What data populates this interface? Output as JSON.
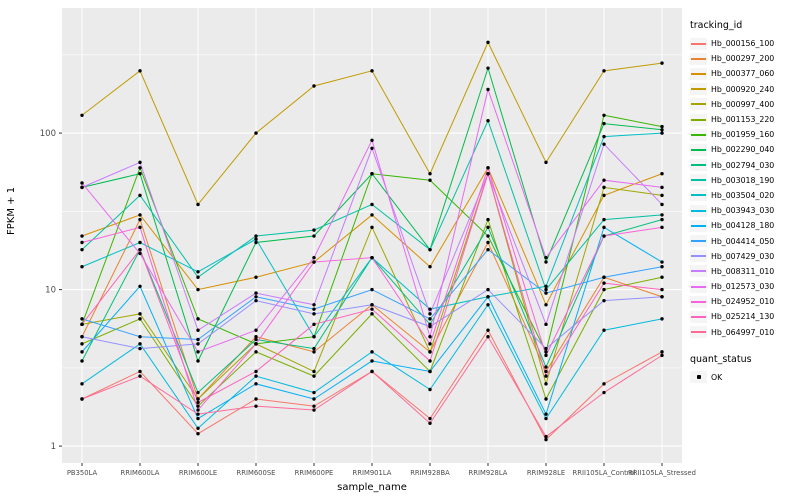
{
  "chart_data": {
    "type": "line",
    "title": "",
    "xlabel": "sample_name",
    "ylabel": "FPKM + 1",
    "legend_title": "tracking_id",
    "quant_legend": {
      "title": "quant_status",
      "items": [
        {
          "label": "OK",
          "color": "#000000"
        }
      ]
    },
    "grid": true,
    "panel_color": "#EBEBEB",
    "gridline_color": "#FFFFFF",
    "point_color": "#000000",
    "y_scale": "log10",
    "y_ticks": [
      1,
      10,
      100
    ],
    "y_minor_ticks": [
      3.162,
      31.62,
      316.2
    ],
    "ylim": [
      0.78,
      630
    ],
    "x_categories": [
      "PB350LA",
      "RRIM600LA",
      "RRIM600LE",
      "RRIM600SE",
      "RRIM600PE",
      "RRIM901LA",
      "RRIM928BA",
      "RRIM928LA",
      "RRIM928LE",
      "RRII105LA_Control",
      "RRII105LA_Stressed"
    ],
    "series": [
      {
        "name": "Hb_000156_100",
        "color": "#F8766D",
        "values": [
          2,
          3,
          1.2,
          2,
          1.8,
          3,
          1.5,
          5.5,
          1.1,
          2.5,
          4
        ]
      },
      {
        "name": "Hb_000297_200",
        "color": "#EA8331",
        "values": [
          5,
          28,
          2,
          5,
          4,
          8,
          4,
          20,
          3,
          12,
          9
        ]
      },
      {
        "name": "Hb_000377_060",
        "color": "#D89000",
        "values": [
          22,
          30,
          10,
          12,
          15,
          30,
          14,
          60,
          8,
          40,
          55
        ]
      },
      {
        "name": "Hb_000920_240",
        "color": "#C09B00",
        "values": [
          130,
          250,
          35,
          100,
          200,
          250,
          55,
          380,
          65,
          250,
          280
        ]
      },
      {
        "name": "Hb_000997_400",
        "color": "#A3A500",
        "values": [
          6,
          7,
          2,
          4.5,
          3,
          25,
          4,
          55,
          2.5,
          45,
          40
        ]
      },
      {
        "name": "Hb_001153_220",
        "color": "#7CAE00",
        "values": [
          4.5,
          6.5,
          1.8,
          4,
          2.8,
          7,
          3,
          28,
          2,
          10,
          12
        ]
      },
      {
        "name": "Hb_001959_160",
        "color": "#39B600",
        "values": [
          6,
          60,
          6.5,
          4.5,
          5,
          55,
          50,
          22,
          4,
          130,
          110
        ]
      },
      {
        "name": "Hb_002290_040",
        "color": "#00BB4E",
        "values": [
          45,
          55,
          3.5,
          20,
          22,
          55,
          18,
          260,
          15,
          115,
          105
        ]
      },
      {
        "name": "Hb_002794_030",
        "color": "#00BF7D",
        "values": [
          3.5,
          18,
          2.2,
          4.8,
          4.2,
          16,
          6,
          25,
          3.2,
          22,
          28
        ]
      },
      {
        "name": "Hb_003018_190",
        "color": "#00C1A3",
        "values": [
          18,
          40,
          12,
          22,
          24,
          35,
          18,
          120,
          10,
          28,
          30
        ]
      },
      {
        "name": "Hb_003504_020",
        "color": "#00BFC4",
        "values": [
          14,
          20,
          13,
          21,
          5,
          16,
          7.5,
          9,
          10.5,
          95,
          100
        ]
      },
      {
        "name": "Hb_003943_030",
        "color": "#00BAE0",
        "values": [
          2.5,
          4.5,
          1.3,
          2.8,
          2.2,
          4,
          2.3,
          8,
          1.5,
          5.5,
          6.5
        ]
      },
      {
        "name": "Hb_004128_180",
        "color": "#00B0F6",
        "values": [
          4,
          10.5,
          1.5,
          2.5,
          2,
          3.5,
          3,
          9,
          1.6,
          25,
          15
        ]
      },
      {
        "name": "Hb_004414_050",
        "color": "#35A2FF",
        "values": [
          6.5,
          5,
          4.8,
          9,
          7.5,
          10,
          6.5,
          18,
          9.5,
          12,
          14
        ]
      },
      {
        "name": "Hb_007429_030",
        "color": "#9590FF",
        "values": [
          5,
          4.2,
          4.5,
          8.5,
          7,
          8,
          5.8,
          10,
          4.2,
          8.5,
          9
        ]
      },
      {
        "name": "Hb_008311_010",
        "color": "#C77CFF",
        "values": [
          45,
          65,
          5.5,
          9.5,
          8,
          80,
          7,
          55,
          6,
          85,
          35
        ]
      },
      {
        "name": "Hb_012573_030",
        "color": "#E76BF3",
        "values": [
          48,
          17,
          4,
          5.5,
          16,
          90,
          5,
          190,
          16,
          50,
          45
        ]
      },
      {
        "name": "Hb_024952_010",
        "color": "#FA62DB",
        "values": [
          20,
          25,
          1.7,
          4.5,
          15,
          16,
          4.5,
          60,
          3.8,
          22,
          25
        ]
      },
      {
        "name": "Hb_025214_130",
        "color": "#FF62BC",
        "values": [
          6,
          18,
          1.9,
          3,
          6,
          7.5,
          3.5,
          55,
          2.8,
          11,
          10
        ]
      },
      {
        "name": "Hb_064997_010",
        "color": "#FF6A98",
        "values": [
          2,
          2.8,
          1.6,
          1.8,
          1.7,
          3,
          1.4,
          5,
          1.15,
          2.2,
          3.8
        ]
      }
    ]
  }
}
